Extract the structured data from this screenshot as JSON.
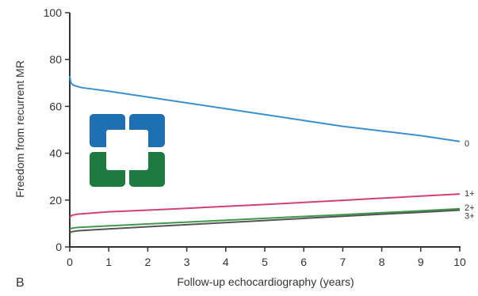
{
  "panel_label": "B",
  "logo": {
    "name": "cleveland-clinic-logo",
    "colors": {
      "top": "#1f6fb3",
      "bottom": "#1e7a3e"
    }
  },
  "chart_data": {
    "type": "line",
    "title": "",
    "xlabel": "Follow-up echocardiography (years)",
    "ylabel": "Freedom from recurrent MR",
    "xlim": [
      0,
      10
    ],
    "ylim": [
      0,
      100
    ],
    "xticks": [
      0,
      1,
      2,
      3,
      4,
      5,
      6,
      7,
      8,
      9,
      10
    ],
    "yticks": [
      0,
      20,
      40,
      60,
      80,
      100
    ],
    "grid": false,
    "legend": "inline-right",
    "series": [
      {
        "name": "0",
        "color": "#3a8fd0",
        "x": [
          0,
          0.03,
          0.1,
          0.3,
          1,
          2,
          3,
          4,
          5,
          6,
          7,
          8,
          9,
          10
        ],
        "y": [
          73,
          70,
          69,
          68,
          66.5,
          64,
          61.5,
          59,
          56.5,
          54,
          51.5,
          49.5,
          47.5,
          45
        ]
      },
      {
        "name": "1+",
        "color": "#d2426e",
        "x": [
          0,
          0.05,
          0.2,
          1,
          2,
          3,
          4,
          5,
          6,
          7,
          8,
          9,
          10
        ],
        "y": [
          12.5,
          13.5,
          14,
          15,
          15.7,
          16.5,
          17.3,
          18.1,
          19,
          19.9,
          20.8,
          21.7,
          22.6
        ]
      },
      {
        "name": "2+",
        "color": "#3e9a4a",
        "x": [
          0,
          0.05,
          0.2,
          1,
          2,
          3,
          4,
          5,
          6,
          7,
          8,
          9,
          10
        ],
        "y": [
          7.5,
          8,
          8.3,
          9,
          9.8,
          10.6,
          11.4,
          12.2,
          13,
          13.8,
          14.6,
          15.4,
          16.3
        ]
      },
      {
        "name": "3+",
        "color": "#555555",
        "x": [
          0,
          0.05,
          0.2,
          1,
          2,
          3,
          4,
          5,
          6,
          7,
          8,
          9,
          10
        ],
        "y": [
          6,
          6.5,
          6.9,
          7.7,
          8.6,
          9.5,
          10.4,
          11.3,
          12.2,
          13.1,
          14,
          14.8,
          15.7
        ]
      }
    ]
  }
}
